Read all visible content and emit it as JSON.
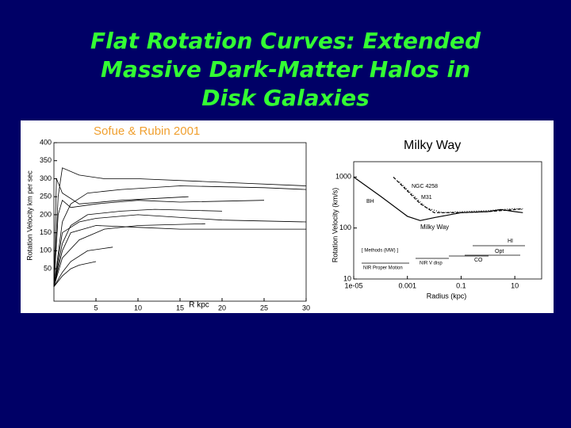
{
  "title": "Flat Rotation Curves:   Extended Massive Dark-Matter Halos in Disk Galaxies",
  "chart_data": [
    {
      "type": "line",
      "title": "Sofue & Rubin 2001",
      "xlabel": "R  kpc",
      "ylabel": "Rotation Velocity km per sec",
      "xlim": [
        0,
        30
      ],
      "xticks": [
        5,
        10,
        15,
        20,
        25,
        30
      ],
      "ylim": [
        -40,
        400
      ],
      "yticks": [
        50,
        100,
        150,
        200,
        250,
        300,
        350,
        400
      ],
      "series": [
        {
          "color": "#000000",
          "x": [
            0,
            1,
            2,
            4,
            8,
            15,
            25,
            30
          ],
          "values": [
            0,
            180,
            230,
            260,
            270,
            280,
            275,
            270
          ]
        },
        {
          "color": "#000000",
          "x": [
            0,
            0.5,
            1,
            3,
            6,
            10,
            20,
            30
          ],
          "values": [
            0,
            250,
            330,
            310,
            300,
            300,
            290,
            280
          ]
        },
        {
          "color": "#000000",
          "x": [
            0,
            1,
            2,
            4,
            8,
            12,
            20
          ],
          "values": [
            0,
            120,
            170,
            200,
            210,
            215,
            210
          ]
        },
        {
          "color": "#000000",
          "x": [
            0,
            1,
            3,
            6,
            10,
            18
          ],
          "values": [
            0,
            80,
            130,
            160,
            170,
            175
          ]
        },
        {
          "color": "#000000",
          "x": [
            0,
            0.5,
            1,
            2,
            5,
            10,
            15,
            25
          ],
          "values": [
            0,
            200,
            240,
            220,
            230,
            240,
            235,
            240
          ]
        },
        {
          "color": "#000000",
          "x": [
            0,
            1,
            2,
            4,
            7
          ],
          "values": [
            0,
            40,
            70,
            100,
            110
          ]
        },
        {
          "color": "#000000",
          "x": [
            0,
            1,
            3,
            5,
            10,
            20,
            30
          ],
          "values": [
            0,
            150,
            180,
            190,
            200,
            185,
            180
          ]
        },
        {
          "color": "#000000",
          "x": [
            0,
            1,
            2,
            5,
            10,
            15,
            25,
            30
          ],
          "values": [
            0,
            100,
            150,
            170,
            165,
            160,
            160,
            160
          ]
        },
        {
          "color": "#000000",
          "x": [
            0,
            0.3,
            1,
            3,
            8,
            16
          ],
          "values": [
            0,
            300,
            260,
            230,
            240,
            250
          ]
        },
        {
          "color": "#000000",
          "x": [
            0,
            1,
            2,
            3,
            5
          ],
          "values": [
            0,
            30,
            50,
            60,
            70
          ]
        }
      ]
    },
    {
      "type": "line",
      "title": "Milky Way",
      "xlabel": "Radius (kpc)",
      "ylabel": "Rotation Velocity (km/s)",
      "xlog": true,
      "ylog": true,
      "xlim": [
        1e-05,
        100
      ],
      "xticks": [
        {
          "value": 1e-05,
          "label": "1e-05"
        },
        0.001,
        0.1,
        10
      ],
      "ylim": [
        10,
        2000
      ],
      "yticks": [
        10,
        100,
        1000
      ],
      "series": [
        {
          "name": "Milky Way",
          "color": "#000000",
          "dash": "solid",
          "x": [
            1e-05,
            0.0001,
            0.001,
            0.003,
            0.01,
            0.1,
            1,
            3,
            10,
            20
          ],
          "values": [
            1000,
            420,
            170,
            140,
            160,
            200,
            210,
            230,
            210,
            200
          ]
        },
        {
          "name": "NGC 4258",
          "color": "#000000",
          "dash": "dashed",
          "x": [
            0.0003,
            0.003,
            0.01,
            0.1,
            1,
            10,
            20
          ],
          "values": [
            1000,
            300,
            200,
            200,
            210,
            230,
            240
          ]
        },
        {
          "name": "M31",
          "color": "#000000",
          "dash": "dotted",
          "x": [
            0.0005,
            0.005,
            0.02,
            0.1,
            1,
            10,
            20
          ],
          "values": [
            800,
            250,
            200,
            210,
            220,
            240,
            230
          ]
        }
      ],
      "annotations": [
        "BH",
        "HI",
        "Opt",
        "CO",
        "[ Methods (MW) ]",
        "NIR Proper Motion",
        "NIR V disp"
      ]
    }
  ]
}
